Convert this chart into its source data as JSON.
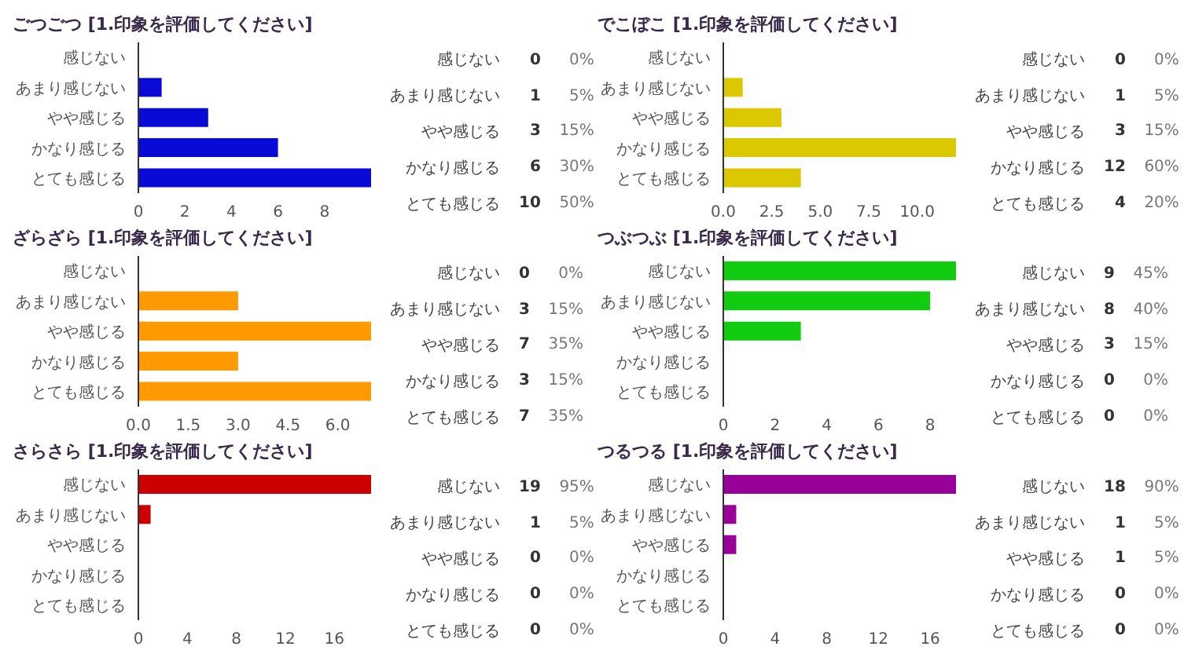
{
  "chart_data": [
    {
      "type": "bar",
      "orientation": "horizontal",
      "title": "ごつごつ [1.印象を評価してください]",
      "categories": [
        "感じない",
        "あまり感じない",
        "やや感じる",
        "かなり感じる",
        "とても感じる"
      ],
      "values": [
        0,
        1,
        3,
        6,
        10
      ],
      "color": "#0a0ad6",
      "xlim": [
        0,
        10
      ],
      "xticks": [
        0,
        2,
        4,
        6,
        8
      ],
      "data_labels": true,
      "annotations": [
        "0%",
        "5%",
        "15%",
        "30%",
        "50%"
      ]
    },
    {
      "type": "bar",
      "orientation": "horizontal",
      "title": "でこぼこ [1.印象を評価してください]",
      "categories": [
        "感じない",
        "あまり感じない",
        "やや感じる",
        "かなり感じる",
        "とても感じる"
      ],
      "values": [
        0,
        1,
        3,
        12,
        4
      ],
      "color": "#dcc800",
      "xlim": [
        0,
        12
      ],
      "xticks": [
        {
          "value": 0,
          "label": "0.0"
        },
        {
          "value": 2.5,
          "label": "2.5"
        },
        {
          "value": 5,
          "label": "5.0"
        },
        {
          "value": 7.5,
          "label": "7.5"
        },
        {
          "value": 10,
          "label": "10.0"
        }
      ],
      "data_labels": true,
      "annotations": [
        "0%",
        "5%",
        "15%",
        "60%",
        "20%"
      ]
    },
    {
      "type": "bar",
      "orientation": "horizontal",
      "title": "ざらざら [1.印象を評価してください]",
      "categories": [
        "感じない",
        "あまり感じない",
        "やや感じる",
        "かなり感じる",
        "とても感じる"
      ],
      "values": [
        0,
        3,
        7,
        3,
        7
      ],
      "color": "#ff9900",
      "xlim": [
        0,
        7
      ],
      "xticks": [
        {
          "value": 0,
          "label": "0.0"
        },
        {
          "value": 1.5,
          "label": "1.5"
        },
        {
          "value": 3,
          "label": "3.0"
        },
        {
          "value": 4.5,
          "label": "4.5"
        },
        {
          "value": 6,
          "label": "6.0"
        }
      ],
      "data_labels": true,
      "annotations": [
        "0%",
        "15%",
        "35%",
        "15%",
        "35%"
      ]
    },
    {
      "type": "bar",
      "orientation": "horizontal",
      "title": "つぶつぶ [1.印象を評価してください]",
      "categories": [
        "感じない",
        "あまり感じない",
        "やや感じる",
        "かなり感じる",
        "とても感じる"
      ],
      "values": [
        9,
        8,
        3,
        0,
        0
      ],
      "color": "#11cc11",
      "xlim": [
        0,
        9
      ],
      "xticks": [
        0,
        2,
        4,
        6,
        8
      ],
      "data_labels": true,
      "annotations": [
        "45%",
        "40%",
        "15%",
        "0%",
        "0%"
      ]
    },
    {
      "type": "bar",
      "orientation": "horizontal",
      "title": "さらさら [1.印象を評価してください]",
      "categories": [
        "感じない",
        "あまり感じない",
        "やや感じる",
        "かなり感じる",
        "とても感じる"
      ],
      "values": [
        19,
        1,
        0,
        0,
        0
      ],
      "color": "#cc0000",
      "xlim": [
        0,
        19
      ],
      "xticks": [
        0,
        4,
        8,
        12,
        16
      ],
      "data_labels": true,
      "annotations": [
        "95%",
        "5%",
        "0%",
        "0%",
        "0%"
      ]
    },
    {
      "type": "bar",
      "orientation": "horizontal",
      "title": "つるつる [1.印象を評価してください]",
      "categories": [
        "感じない",
        "あまり感じない",
        "やや感じる",
        "かなり感じる",
        "とても感じる"
      ],
      "values": [
        18,
        1,
        1,
        0,
        0
      ],
      "color": "#990099",
      "xlim": [
        0,
        18
      ],
      "xticks": [
        0,
        4,
        8,
        12,
        16
      ],
      "data_labels": true,
      "annotations": [
        "90%",
        "5%",
        "5%",
        "0%",
        "0%"
      ]
    }
  ]
}
